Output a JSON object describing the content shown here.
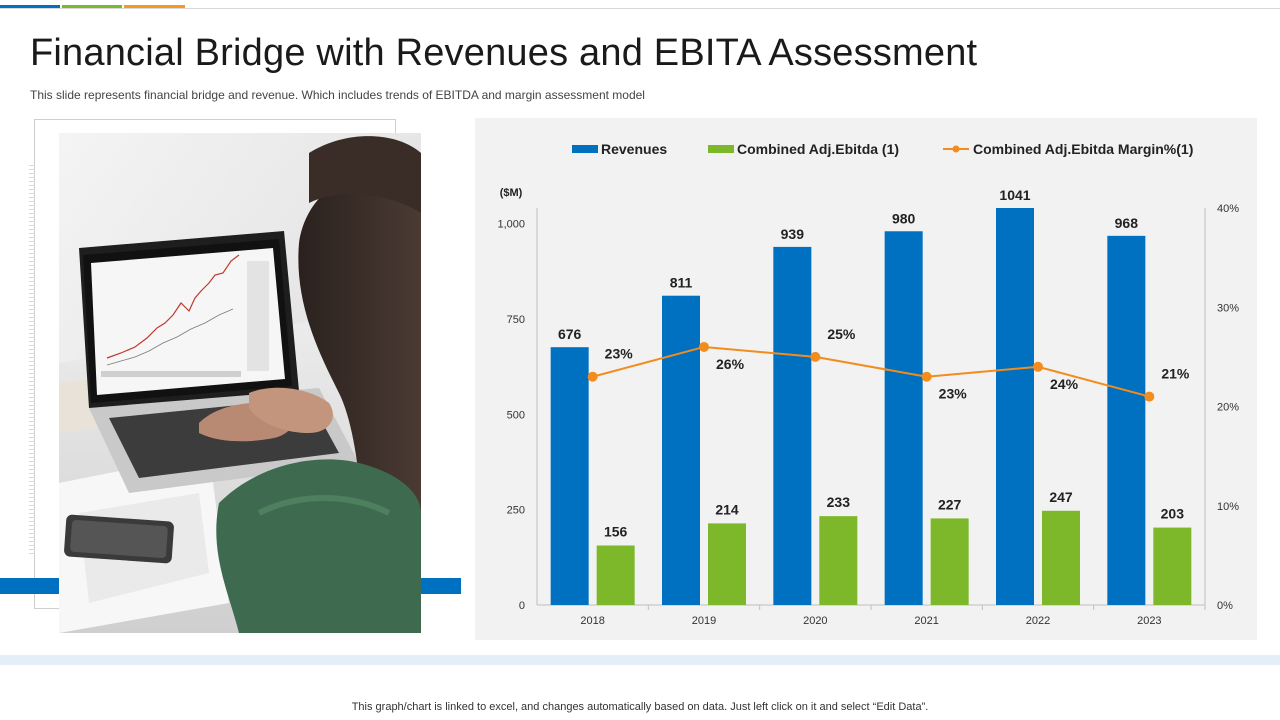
{
  "title": "Financial Bridge with Revenues and EBITA Assessment",
  "subtitle": "This slide represents financial bridge and revenue.  Which includes trends of EBITDA and margin assessment model",
  "footer": "This graph/chart is linked to excel,  and changes automatically based on data. Just left click on it and select “Edit Data”.",
  "colors": {
    "accent_blue": "#0070c0",
    "accent_green": "#7cb829",
    "accent_orange": "#f59a1b",
    "revenues": "#0070c0",
    "ebitda": "#7cb829",
    "margin": "#f28c1c"
  },
  "chart_data": {
    "type": "bar",
    "title": "",
    "categories": [
      "2018",
      "2019",
      "2020",
      "2021",
      "2022",
      "2023"
    ],
    "series": [
      {
        "name": "Revenues",
        "type": "bar",
        "axis": "left",
        "values": [
          676,
          811,
          939,
          980,
          1041,
          968
        ],
        "labels": [
          "676",
          "811",
          "939",
          "980",
          "1041",
          "968"
        ]
      },
      {
        "name": "Combined Adj.Ebitda (1)",
        "type": "bar",
        "axis": "left",
        "values": [
          156,
          214,
          233,
          227,
          247,
          203
        ],
        "labels": [
          "156",
          "214",
          "233",
          "227",
          "247",
          "203"
        ]
      },
      {
        "name": "Combined Adj.Ebitda Margin%(1)",
        "type": "line",
        "axis": "right",
        "values": [
          23,
          26,
          25,
          23,
          24,
          21
        ],
        "labels": [
          "23%",
          "26%",
          "25%",
          "23%",
          "24%",
          "21%"
        ]
      }
    ],
    "ylabel": "($M)",
    "ylim": [
      0,
      1041
    ],
    "yticks": [
      0,
      250,
      500,
      750,
      1000
    ],
    "ytick_labels": [
      "0",
      "250",
      "500",
      "750",
      "1,000"
    ],
    "y2lim": [
      0,
      40
    ],
    "y2ticks": [
      0,
      10,
      20,
      30,
      40
    ],
    "y2tick_labels": [
      "0%",
      "10%",
      "20%",
      "30%",
      "40%"
    ],
    "grid": false,
    "legend": "top"
  }
}
